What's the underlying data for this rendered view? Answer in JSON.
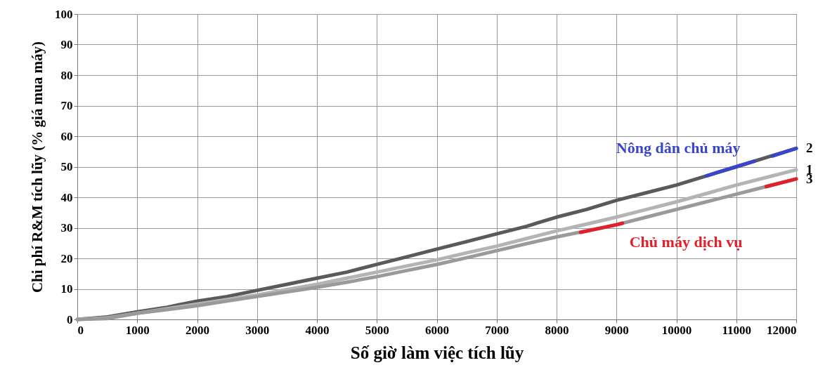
{
  "chart_data": {
    "type": "line",
    "xlabel": "Số giờ làm việc tích lũy",
    "ylabel": "Chi phí R&M tích lũy (% giá mua máy)",
    "x": [
      0,
      500,
      1000,
      1500,
      2000,
      2500,
      3000,
      3500,
      4000,
      4500,
      5000,
      5500,
      6000,
      6500,
      7000,
      7500,
      8000,
      8500,
      9000,
      9500,
      10000,
      10500,
      11000,
      11500,
      12000
    ],
    "series": [
      {
        "name": "2",
        "color": "#5a5a5a",
        "values": [
          0,
          0.8,
          2.5,
          4,
          6,
          7.5,
          9.5,
          11.5,
          13.5,
          15.5,
          18,
          20.5,
          23,
          25.5,
          28,
          30.5,
          33.5,
          36,
          39,
          41.5,
          44,
          47,
          50,
          53,
          56
        ]
      },
      {
        "name": "1",
        "color": "#b4b4b4",
        "values": [
          0,
          0.5,
          2,
          3.5,
          5,
          6.5,
          8,
          9.8,
          11.5,
          13.5,
          15.5,
          17.5,
          19.5,
          21.8,
          24,
          26.5,
          29,
          31.2,
          33.5,
          36,
          38.5,
          41.2,
          44,
          46.5,
          49
        ]
      },
      {
        "name": "3",
        "color": "#9a9a9a",
        "values": [
          0,
          0.3,
          2,
          3.2,
          4.5,
          6,
          7.5,
          9,
          10.5,
          12.2,
          14,
          16,
          18,
          20.2,
          22.5,
          24.8,
          27,
          29,
          31,
          33.5,
          36,
          38.5,
          41,
          43.5,
          46
        ]
      },
      {
        "color": "#3a46c8",
        "x": [
          10500,
          11000,
          11300,
          11450,
          11600,
          12000
        ],
        "values": [
          47,
          50,
          51.8,
          null,
          53.5,
          56
        ]
      },
      {
        "color": "#e0202a",
        "x": [
          8400,
          9000,
          9100,
          9500,
          11500,
          12000
        ],
        "values": [
          28.5,
          31,
          31.5,
          null,
          43.5,
          46
        ]
      }
    ],
    "annotations": [
      "Nông dân chủ máy",
      "Chủ máy dịch vụ"
    ],
    "xlim": [
      0,
      12000
    ],
    "xticks": [
      0,
      1000,
      2000,
      3000,
      4000,
      5000,
      6000,
      7000,
      8000,
      9000,
      10000,
      11000,
      12000
    ],
    "ylim": [
      0,
      100
    ],
    "yticks": [
      0,
      10,
      20,
      30,
      40,
      50,
      60,
      70,
      80,
      90,
      100
    ],
    "grid": true,
    "line_style": "solid",
    "marker": "none"
  }
}
